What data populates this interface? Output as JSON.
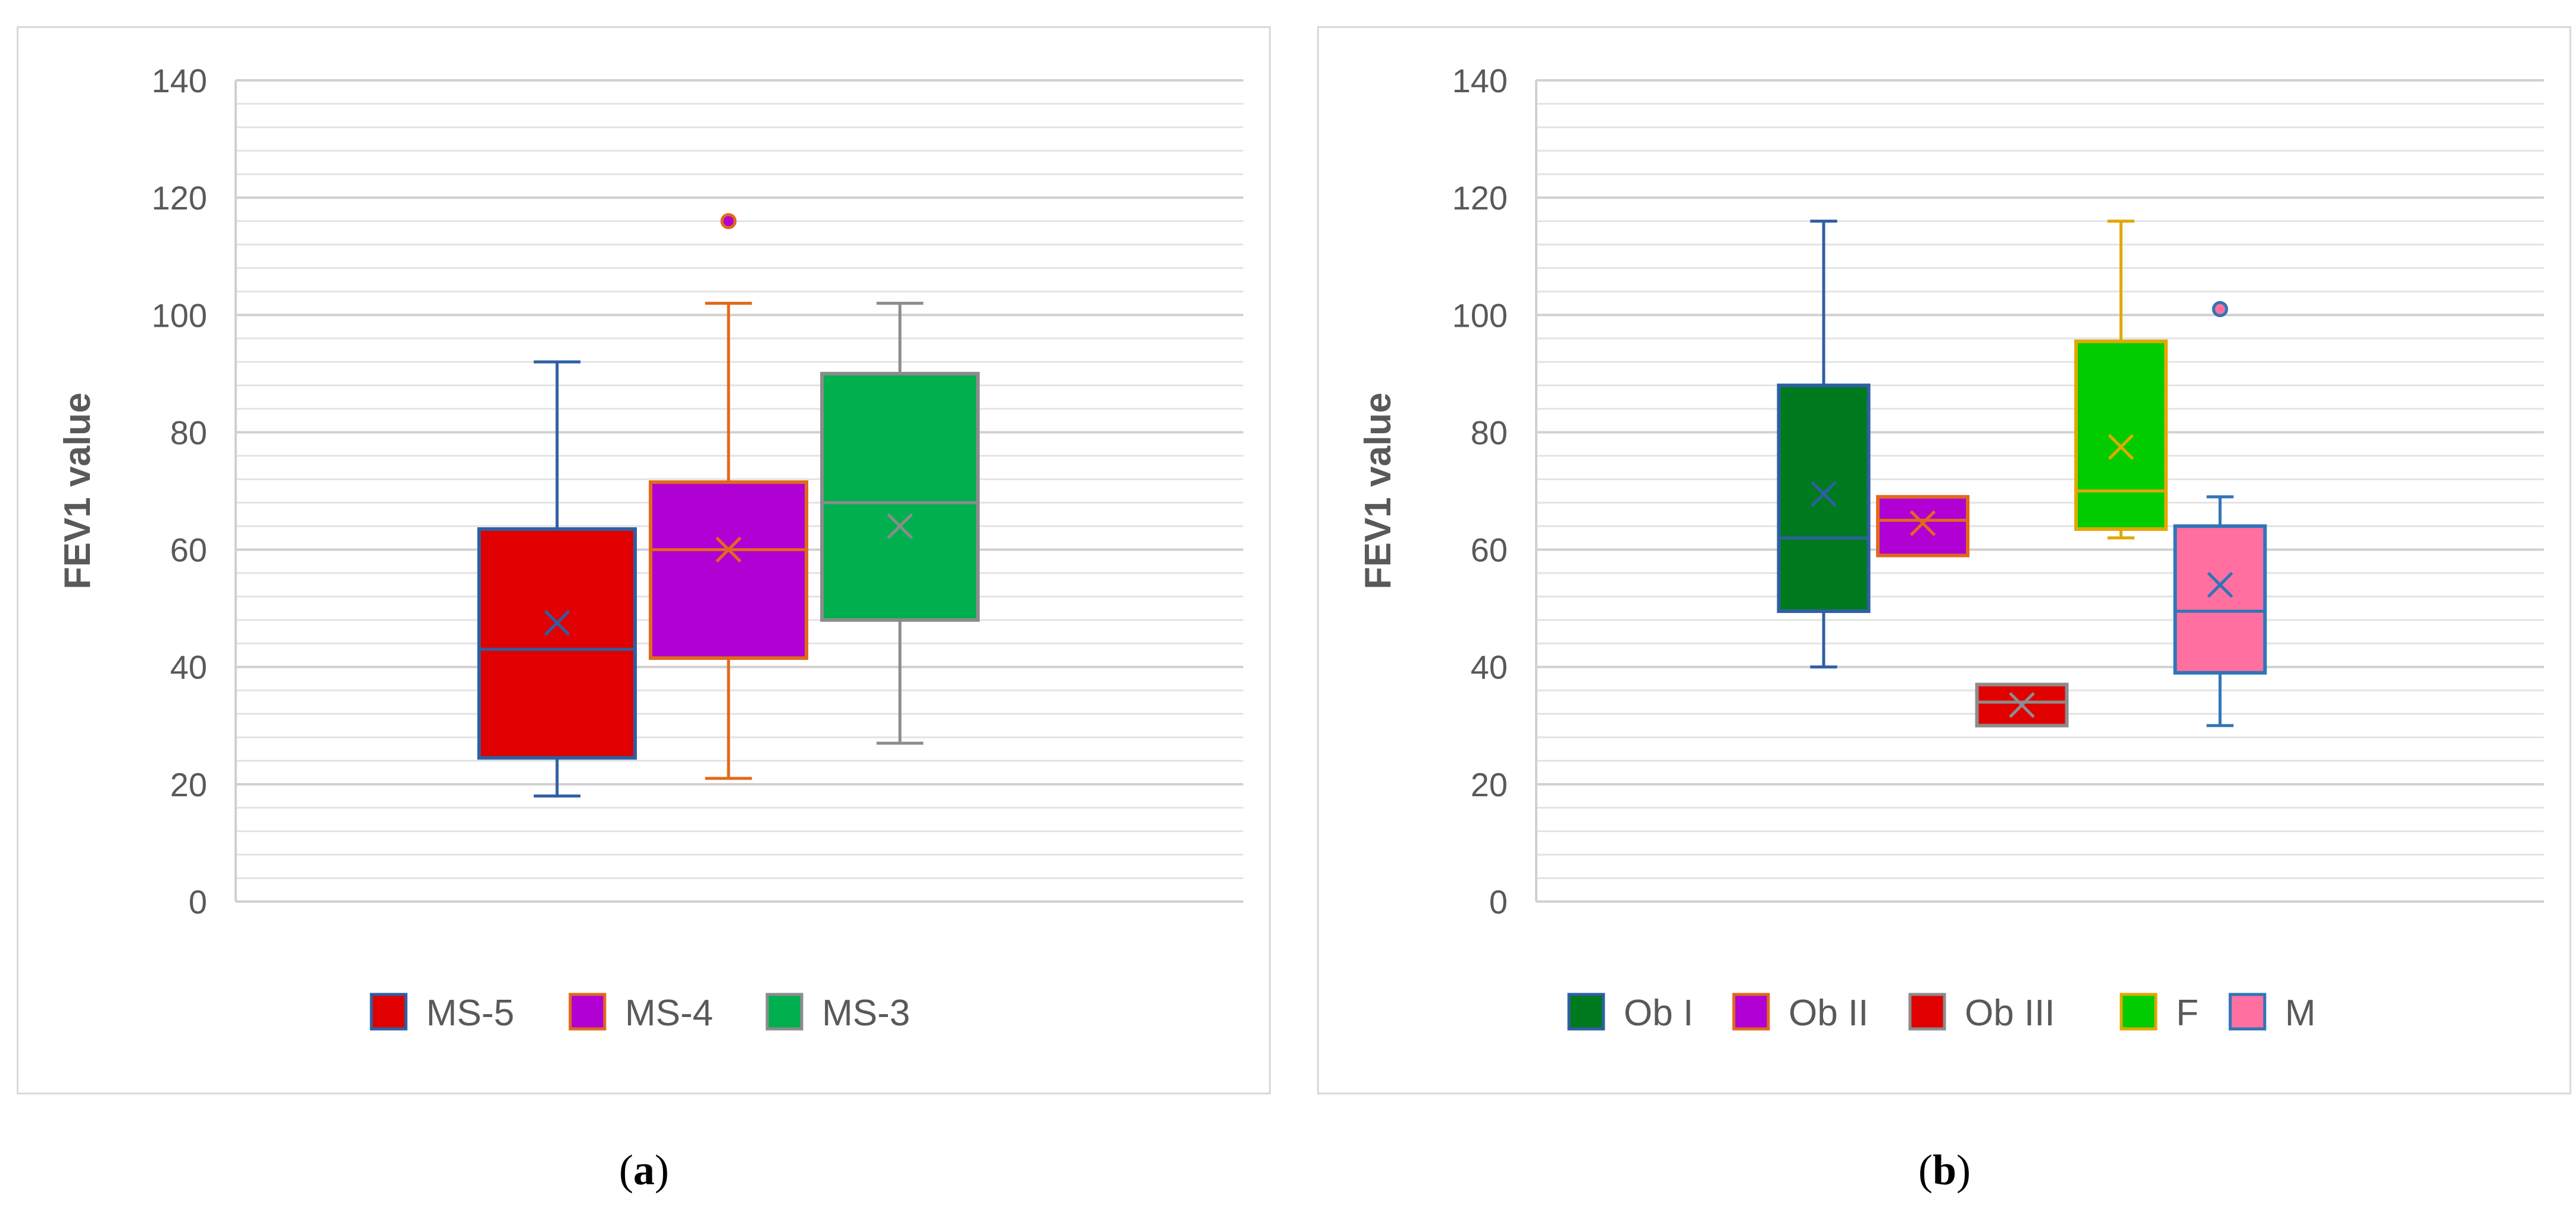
{
  "chart_data": [
    {
      "id": "a",
      "type": "boxplot",
      "caption_label": "a",
      "ylabel": "FEV1 value",
      "xlabel": "",
      "ylim": [
        0,
        140
      ],
      "ytick_labels": [
        "0",
        "20",
        "40",
        "60",
        "80",
        "100",
        "120",
        "140"
      ],
      "grid": true,
      "legend_position": "bottom",
      "series": [
        {
          "name": "MS-5",
          "fill": "#e00000",
          "edge": "#2e5fa3",
          "whisker_low": 18,
          "q1": 24.5,
          "median": 43,
          "q3": 63.5,
          "whisker_high": 92,
          "mean": 47.5,
          "outliers": []
        },
        {
          "name": "MS-4",
          "fill": "#b000d4",
          "edge": "#e06a1b",
          "whisker_low": 21,
          "q1": 41.5,
          "median": 60,
          "q3": 71.5,
          "whisker_high": 102,
          "mean": 60,
          "outliers": [
            116
          ]
        },
        {
          "name": "MS-3",
          "fill": "#00b04f",
          "edge": "#8c8c8c",
          "whisker_low": 27,
          "q1": 48,
          "median": 68,
          "q3": 90,
          "whisker_high": 102,
          "mean": 64,
          "outliers": []
        }
      ]
    },
    {
      "id": "b",
      "type": "boxplot",
      "caption_label": "b",
      "ylabel": "FEV1 value",
      "xlabel": "",
      "ylim": [
        0,
        140
      ],
      "ytick_labels": [
        "0",
        "20",
        "40",
        "60",
        "80",
        "100",
        "120",
        "140"
      ],
      "grid": true,
      "legend_position": "bottom",
      "series": [
        {
          "name": "Ob I",
          "fill": "#007a1f",
          "edge": "#2e5fa3",
          "whisker_low": 40,
          "q1": 49.5,
          "median": 62,
          "q3": 88,
          "whisker_high": 116,
          "mean": 69.5,
          "outliers": []
        },
        {
          "name": "Ob II",
          "fill": "#b000d4",
          "edge": "#e06a1b",
          "whisker_low": 59,
          "q1": 59,
          "median": 65,
          "q3": 69,
          "whisker_high": 69,
          "mean": 64.5,
          "outliers": []
        },
        {
          "name": "Ob III",
          "fill": "#e00000",
          "edge": "#8c8c8c",
          "whisker_low": 30,
          "q1": 30,
          "median": 34,
          "q3": 37,
          "whisker_high": 37,
          "mean": 33.5,
          "outliers": []
        },
        {
          "name": "F",
          "fill": "#00cc00",
          "edge": "#e0a800",
          "whisker_low": 62,
          "q1": 63.5,
          "median": 70,
          "q3": 95.5,
          "whisker_high": 116,
          "mean": 77.5,
          "outliers": []
        },
        {
          "name": "M",
          "fill": "#ff6f9f",
          "edge": "#2e75b6",
          "whisker_low": 30,
          "q1": 39,
          "median": 49.5,
          "q3": 64,
          "whisker_high": 69,
          "mean": 54,
          "outliers": [
            101
          ]
        }
      ]
    }
  ]
}
